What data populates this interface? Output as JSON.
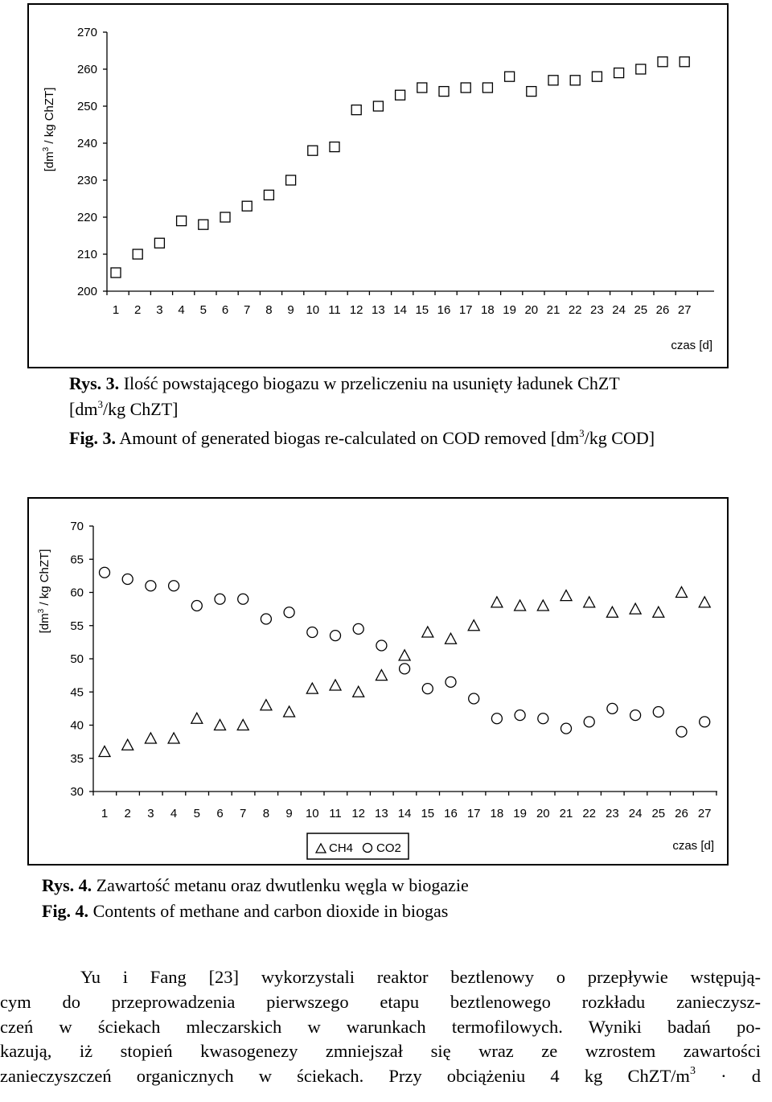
{
  "figure1": {
    "ylabel_prefix": "[dm",
    "ylabel_sup": "3",
    "ylabel_suffix": " / kg ChZT]",
    "xlabel": "czas [d]",
    "caption_pl_prefix": "Rys. 3.",
    "caption_pl_text": " Ilość powstającego biogazu w przeliczeniu na usunięty ładunek ChZT",
    "caption_pl_line2_a": "[dm",
    "caption_pl_line2_sup": "3",
    "caption_pl_line2_b": "/kg ChZT]",
    "caption_en_prefix": "Fig. 3.",
    "caption_en_text_a": " Amount of generated biogas re-calculated on COD removed [dm",
    "caption_en_sup": "3",
    "caption_en_text_b": "/kg COD]"
  },
  "figure2": {
    "ylabel_prefix": "[dm",
    "ylabel_sup": "3",
    "ylabel_suffix": " / kg ChZT]",
    "xlabel": "czas [d]",
    "legend_ch4": "CH4",
    "legend_co2": "CO2",
    "caption_pl_prefix": "Rys. 4.",
    "caption_pl_text": " Zawartość metanu oraz dwutlenku węgla w biogazie",
    "caption_en_prefix": "Fig. 4.",
    "caption_en_text": " Contents of methane and carbon dioxide in biogas"
  },
  "chart_data": [
    {
      "type": "scatter",
      "title": "",
      "xlabel": "czas [d]",
      "ylabel": "[dm3 / kg ChZT]",
      "x": [
        1,
        2,
        3,
        4,
        5,
        6,
        7,
        8,
        9,
        10,
        11,
        12,
        13,
        14,
        15,
        16,
        17,
        18,
        19,
        20,
        21,
        22,
        23,
        24,
        25,
        26,
        27
      ],
      "ylim": [
        200,
        270
      ],
      "yticks": [
        200,
        210,
        220,
        230,
        240,
        250,
        260,
        270
      ],
      "marker": "square",
      "series": [
        {
          "values": [
            205,
            210,
            213,
            219,
            218,
            220,
            223,
            226,
            230,
            238,
            239,
            249,
            250,
            253,
            255,
            254,
            255,
            255,
            258,
            254,
            257,
            257,
            258,
            259,
            260,
            262,
            262
          ]
        }
      ]
    },
    {
      "type": "scatter",
      "title": "",
      "xlabel": "czas [d]",
      "ylabel": "[dm3 / kg ChZT]",
      "x": [
        1,
        2,
        3,
        4,
        5,
        6,
        7,
        8,
        9,
        10,
        11,
        12,
        13,
        14,
        15,
        16,
        17,
        18,
        19,
        20,
        21,
        22,
        23,
        24,
        25,
        26,
        27
      ],
      "ylim": [
        30,
        70
      ],
      "yticks": [
        30,
        35,
        40,
        45,
        50,
        55,
        60,
        65,
        70
      ],
      "legend": "bottom-center",
      "series": [
        {
          "name": "CH4",
          "marker": "triangle",
          "values": [
            36,
            37,
            38,
            38,
            41,
            40,
            40,
            43,
            42,
            45.5,
            46,
            45,
            47.5,
            50.5,
            54,
            53,
            55,
            58.5,
            58,
            58,
            59.5,
            58.5,
            57,
            57.5,
            57,
            60,
            58.5
          ]
        },
        {
          "name": "CO2",
          "marker": "circle",
          "values": [
            63,
            62,
            61,
            61,
            58,
            59,
            59,
            56,
            57,
            54,
            53.5,
            54.5,
            52,
            48.5,
            45.5,
            46.5,
            44,
            41,
            41.5,
            41,
            39.5,
            40.5,
            42.5,
            41.5,
            42,
            39,
            40.5
          ]
        }
      ]
    }
  ],
  "body": {
    "line1": "Yu i Fang [23] wykorzystali reaktor beztlenowy o przepływie wstępują-",
    "line2": "cym do przeprowadzenia pierwszego etapu beztlenowego rozkładu zanieczysz-",
    "line3": "czeń w ściekach mleczarskich w warunkach termofilowych. Wyniki badań po-",
    "line4": "kazują, iż stopień kwasogenezy zmniejszał się wraz ze wzrostem zawartości",
    "line5_a": "zanieczyszczeń organicznych w ściekach. Przy obciążeniu 4 kg ChZT/m",
    "line5_sup": "3",
    "line5_b": " · d"
  }
}
